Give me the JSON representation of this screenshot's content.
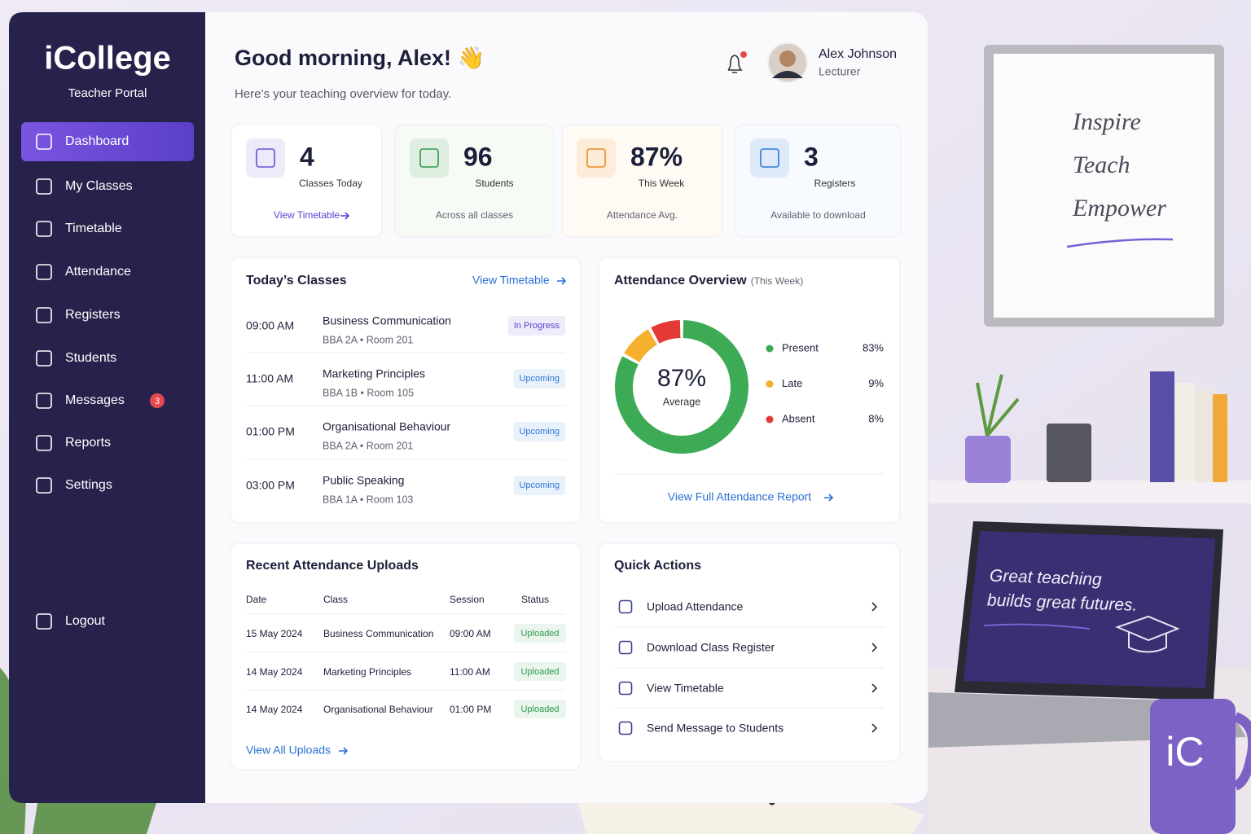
{
  "sidebar": {
    "logo": "iCollege",
    "subtitle": "Teacher Portal",
    "nav": [
      "Dashboard",
      "My Classes",
      "Timetable",
      "Attendance",
      "Registers",
      "Students",
      "Messages",
      "Reports",
      "Settings"
    ],
    "messages_badge": 3,
    "logout": "Logout"
  },
  "header": {
    "greeting": "Good morning, Alex! 👋",
    "subtitle": "Here’s your teaching overview for today.",
    "user_name": "Alex Johnson",
    "user_role": "Lecturer"
  },
  "stats": [
    {
      "value": 4,
      "label": "Classes Today",
      "footer": "View Timetable",
      "color": "#6b4fd6"
    },
    {
      "value": 96,
      "label": "Students",
      "footer": "Across all classes",
      "color": "#2f9a4a"
    },
    {
      "value": "87%",
      "label": "This Week",
      "footer": "Attendance Avg.",
      "color": "#f08a24"
    },
    {
      "value": 3,
      "label": "Registers",
      "footer": "Available to download",
      "color": "#2a78d4"
    }
  ],
  "todays_classes": {
    "title": "Today’s Classes",
    "link": "View Timetable",
    "rows": [
      {
        "time": "09:00 AM",
        "name": "Business Communication",
        "detail": "BBA 2A • Room 201",
        "status": "In Progress",
        "status_color": "#5b3fd0"
      },
      {
        "time": "11:00 AM",
        "name": "Marketing Principles",
        "detail": "BBA 1B • Room 105",
        "status": "Upcoming",
        "status_color": "#2a78d4"
      },
      {
        "time": "01:00 PM",
        "name": "Organisational Behaviour",
        "detail": "BBA 2A • Room 201",
        "status": "Upcoming",
        "status_color": "#2a78d4"
      },
      {
        "time": "03:00 PM",
        "name": "Public Speaking",
        "detail": "BBA 1A • Room 103",
        "status": "Upcoming",
        "status_color": "#2a78d4"
      }
    ]
  },
  "attendance_chart": {
    "type": "donut",
    "title": "Attendance Overview",
    "subtitle": "(This Week)",
    "center_label": "87%",
    "center_caption": "Average",
    "categories": [
      "Present",
      "Late",
      "Absent"
    ],
    "values": [
      83,
      9,
      8
    ],
    "value_labels": [
      "83%",
      "9%",
      "8%"
    ],
    "colors": [
      "#3daa55",
      "#f5b02e",
      "#e53935"
    ],
    "link": "View Full Attendance Report"
  },
  "uploads": {
    "title": "Recent Attendance Uploads",
    "columns": [
      "Date",
      "Class",
      "Session",
      "Status"
    ],
    "rows": [
      [
        "15 May 2024",
        "Business Communication",
        "09:00 AM",
        "Uploaded"
      ],
      [
        "14 May 2024",
        "Marketing Principles",
        "11:00 AM",
        "Uploaded"
      ],
      [
        "14 May 2024",
        "Organisational Behaviour",
        "01:00 PM",
        "Uploaded"
      ]
    ],
    "status_color": "#2f9a4a",
    "link": "View All Uploads"
  },
  "quick_actions": {
    "title": "Quick Actions",
    "items": [
      "Upload Attendance",
      "Download Class Register",
      "View Timetable",
      "Send Message to Students"
    ]
  },
  "decor": {
    "whiteboard": [
      "Inspire",
      "Teach",
      "Empower"
    ],
    "laptop": [
      "Great teaching",
      "builds great futures."
    ],
    "mug": "iC"
  }
}
